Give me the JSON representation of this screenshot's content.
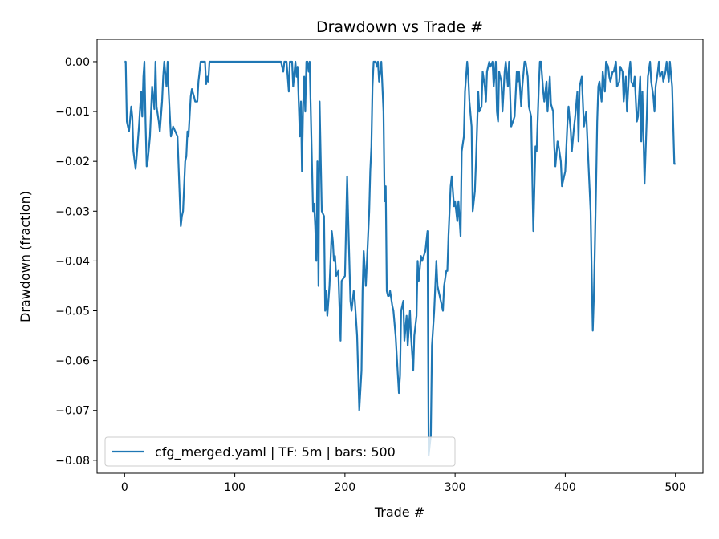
{
  "chart_data": {
    "type": "line",
    "title": "Drawdown vs Trade #",
    "xlabel": "Trade #",
    "ylabel": "Drawdown (fraction)",
    "xlim": [
      -25,
      525
    ],
    "ylim": [
      -0.0826,
      0.0045
    ],
    "xticks": [
      0,
      100,
      200,
      300,
      400,
      500
    ],
    "xtick_labels": [
      "0",
      "100",
      "200",
      "300",
      "400",
      "500"
    ],
    "yticks": [
      0,
      -0.01,
      -0.02,
      -0.03,
      -0.04,
      -0.05,
      -0.06,
      -0.07,
      -0.08
    ],
    "ytick_labels": [
      "0.00",
      "−0.01",
      "−0.02",
      "−0.03",
      "−0.04",
      "−0.05",
      "−0.06",
      "−0.07",
      "−0.08"
    ],
    "grid": false,
    "legend_position": "lower-left",
    "series": [
      {
        "name": "cfg_merged.yaml | TF: 5m | bars: 500",
        "color": "#1f77b4",
        "points": [
          [
            0,
            0
          ],
          [
            1,
            0
          ],
          [
            2,
            -0.012
          ],
          [
            4,
            -0.014
          ],
          [
            6,
            -0.009
          ],
          [
            7,
            -0.011
          ],
          [
            8,
            -0.018
          ],
          [
            10,
            -0.0215
          ],
          [
            11,
            -0.019
          ],
          [
            13,
            -0.013
          ],
          [
            15,
            -0.006
          ],
          [
            16,
            -0.011
          ],
          [
            17,
            -0.003
          ],
          [
            18,
            0
          ],
          [
            19,
            -0.012
          ],
          [
            20,
            -0.021
          ],
          [
            21,
            -0.02
          ],
          [
            23,
            -0.015
          ],
          [
            25,
            -0.005
          ],
          [
            27,
            -0.0095
          ],
          [
            28,
            0
          ],
          [
            29,
            -0.009
          ],
          [
            31,
            -0.012
          ],
          [
            32,
            -0.014
          ],
          [
            34,
            -0.008
          ],
          [
            35,
            -0.003
          ],
          [
            36,
            0
          ],
          [
            38,
            -0.005
          ],
          [
            39,
            0
          ],
          [
            40,
            -0.006
          ],
          [
            42,
            -0.015
          ],
          [
            44,
            -0.013
          ],
          [
            46,
            -0.014
          ],
          [
            48,
            -0.015
          ],
          [
            51,
            -0.033
          ],
          [
            52,
            -0.031
          ],
          [
            53,
            -0.03
          ],
          [
            55,
            -0.02
          ],
          [
            56,
            -0.019
          ],
          [
            57,
            -0.014
          ],
          [
            58,
            -0.015
          ],
          [
            60,
            -0.007
          ],
          [
            61,
            -0.0055
          ],
          [
            63,
            -0.007
          ],
          [
            64,
            -0.008
          ],
          [
            66,
            -0.008
          ],
          [
            67,
            -0.004
          ],
          [
            68,
            -0.002
          ],
          [
            69,
            0
          ],
          [
            73,
            0
          ],
          [
            74,
            -0.0045
          ],
          [
            75,
            -0.003
          ],
          [
            76,
            -0.004
          ],
          [
            77,
            0
          ],
          [
            142,
            0
          ],
          [
            144,
            -0.002
          ],
          [
            145,
            0
          ],
          [
            147,
            0
          ],
          [
            149,
            -0.006
          ],
          [
            150,
            0
          ],
          [
            152,
            0
          ],
          [
            153,
            -0.005
          ],
          [
            155,
            0
          ],
          [
            156,
            -0.003
          ],
          [
            157,
            -0.001
          ],
          [
            159,
            -0.015
          ],
          [
            160,
            -0.008
          ],
          [
            161,
            -0.022
          ],
          [
            162,
            -0.009
          ],
          [
            163,
            -0.003
          ],
          [
            164,
            -0.01
          ],
          [
            165,
            0
          ],
          [
            166,
            0
          ],
          [
            167,
            -0.002
          ],
          [
            168,
            0
          ],
          [
            171,
            -0.03
          ],
          [
            172,
            -0.0285
          ],
          [
            173,
            -0.033
          ],
          [
            174,
            -0.04
          ],
          [
            175,
            -0.02
          ],
          [
            176,
            -0.045
          ],
          [
            177,
            -0.008
          ],
          [
            179,
            -0.03
          ],
          [
            181,
            -0.031
          ],
          [
            182,
            -0.05
          ],
          [
            183,
            -0.046
          ],
          [
            184,
            -0.051
          ],
          [
            186,
            -0.045
          ],
          [
            188,
            -0.034
          ],
          [
            189,
            -0.036
          ],
          [
            190,
            -0.04
          ],
          [
            191,
            -0.039
          ],
          [
            192,
            -0.043
          ],
          [
            194,
            -0.042
          ],
          [
            196,
            -0.056
          ],
          [
            197,
            -0.044
          ],
          [
            200,
            -0.043
          ],
          [
            202,
            -0.023
          ],
          [
            203,
            -0.032
          ],
          [
            205,
            -0.048
          ],
          [
            206,
            -0.05
          ],
          [
            208,
            -0.046
          ],
          [
            209,
            -0.048
          ],
          [
            211,
            -0.055
          ],
          [
            213,
            -0.07
          ],
          [
            215,
            -0.062
          ],
          [
            216,
            -0.046
          ],
          [
            217,
            -0.038
          ],
          [
            219,
            -0.045
          ],
          [
            220,
            -0.04
          ],
          [
            222,
            -0.03
          ],
          [
            223,
            -0.022
          ],
          [
            224,
            -0.017
          ],
          [
            225,
            -0.005
          ],
          [
            226,
            0
          ],
          [
            228,
            0
          ],
          [
            229,
            -0.001
          ],
          [
            230,
            0
          ],
          [
            231,
            -0.004
          ],
          [
            233,
            0
          ],
          [
            235,
            -0.01
          ],
          [
            236,
            -0.028
          ],
          [
            237,
            -0.025
          ],
          [
            238,
            -0.046
          ],
          [
            239,
            -0.047
          ],
          [
            240,
            -0.047
          ],
          [
            241,
            -0.046
          ],
          [
            243,
            -0.049
          ],
          [
            244,
            -0.05
          ],
          [
            246,
            -0.055
          ],
          [
            249,
            -0.0665
          ],
          [
            250,
            -0.063
          ],
          [
            251,
            -0.05
          ],
          [
            253,
            -0.048
          ],
          [
            254,
            -0.056
          ],
          [
            256,
            -0.051
          ],
          [
            257,
            -0.057
          ],
          [
            259,
            -0.05
          ],
          [
            260,
            -0.055
          ],
          [
            262,
            -0.062
          ],
          [
            263,
            -0.055
          ],
          [
            265,
            -0.051
          ],
          [
            266,
            -0.04
          ],
          [
            267,
            -0.044
          ],
          [
            269,
            -0.039
          ],
          [
            270,
            -0.04
          ],
          [
            273,
            -0.038
          ],
          [
            274,
            -0.036
          ],
          [
            275,
            -0.034
          ],
          [
            276,
            -0.079
          ],
          [
            278,
            -0.075
          ],
          [
            279,
            -0.057
          ],
          [
            281,
            -0.05
          ],
          [
            283,
            -0.04
          ],
          [
            284,
            -0.045
          ],
          [
            286,
            -0.047
          ],
          [
            287,
            -0.048
          ],
          [
            289,
            -0.05
          ],
          [
            290,
            -0.045
          ],
          [
            292,
            -0.042
          ],
          [
            293,
            -0.042
          ],
          [
            294,
            -0.035
          ],
          [
            296,
            -0.025
          ],
          [
            297,
            -0.023
          ],
          [
            299,
            -0.029
          ],
          [
            300,
            -0.028
          ],
          [
            302,
            -0.032
          ],
          [
            303,
            -0.028
          ],
          [
            305,
            -0.035
          ],
          [
            306,
            -0.018
          ],
          [
            308,
            -0.015
          ],
          [
            309,
            -0.006
          ],
          [
            311,
            0
          ],
          [
            312,
            -0.003
          ],
          [
            313,
            -0.008
          ],
          [
            315,
            -0.013
          ],
          [
            316,
            -0.03
          ],
          [
            318,
            -0.026
          ],
          [
            319,
            -0.02
          ],
          [
            321,
            -0.006
          ],
          [
            322,
            -0.01
          ],
          [
            324,
            -0.009
          ],
          [
            325,
            -0.002
          ],
          [
            327,
            -0.005
          ],
          [
            328,
            -0.008
          ],
          [
            329,
            -0.002
          ],
          [
            331,
            0
          ],
          [
            332,
            -0.001
          ],
          [
            334,
            0
          ],
          [
            335,
            -0.005
          ],
          [
            337,
            0
          ],
          [
            338,
            -0.01
          ],
          [
            339,
            -0.012
          ],
          [
            340,
            -0.002
          ],
          [
            342,
            -0.004
          ],
          [
            343,
            -0.01
          ],
          [
            345,
            -0.002
          ],
          [
            346,
            0
          ],
          [
            348,
            -0.005
          ],
          [
            349,
            0
          ],
          [
            351,
            -0.013
          ],
          [
            354,
            -0.011
          ],
          [
            356,
            -0.002
          ],
          [
            357,
            -0.004
          ],
          [
            358,
            -0.002
          ],
          [
            360,
            -0.009
          ],
          [
            361,
            -0.005
          ],
          [
            363,
            0
          ],
          [
            364,
            0
          ],
          [
            366,
            -0.003
          ],
          [
            367,
            -0.009
          ],
          [
            369,
            -0.011
          ],
          [
            371,
            -0.034
          ],
          [
            373,
            -0.017
          ],
          [
            374,
            -0.018
          ],
          [
            376,
            -0.005
          ],
          [
            377,
            0
          ],
          [
            378,
            0
          ],
          [
            380,
            -0.006
          ],
          [
            381,
            -0.008
          ],
          [
            383,
            -0.004
          ],
          [
            384,
            -0.01
          ],
          [
            386,
            -0.003
          ],
          [
            387,
            -0.0085
          ],
          [
            389,
            -0.01
          ],
          [
            390,
            -0.017
          ],
          [
            391,
            -0.021
          ],
          [
            393,
            -0.016
          ],
          [
            394,
            -0.017
          ],
          [
            396,
            -0.02
          ],
          [
            397,
            -0.025
          ],
          [
            399,
            -0.023
          ],
          [
            400,
            -0.022
          ],
          [
            402,
            -0.012
          ],
          [
            403,
            -0.009
          ],
          [
            405,
            -0.014
          ],
          [
            406,
            -0.018
          ],
          [
            408,
            -0.013
          ],
          [
            409,
            -0.011
          ],
          [
            411,
            -0.006
          ],
          [
            412,
            -0.016
          ],
          [
            413,
            -0.005
          ],
          [
            415,
            -0.003
          ],
          [
            417,
            -0.013
          ],
          [
            419,
            -0.01
          ],
          [
            421,
            -0.02
          ],
          [
            423,
            -0.03
          ],
          [
            424,
            -0.043
          ],
          [
            425,
            -0.054
          ],
          [
            426,
            -0.047
          ],
          [
            428,
            -0.025
          ],
          [
            429,
            -0.012
          ],
          [
            430,
            -0.005
          ],
          [
            431,
            -0.004
          ],
          [
            433,
            -0.008
          ],
          [
            434,
            -0.002
          ],
          [
            436,
            -0.006
          ],
          [
            437,
            0
          ],
          [
            439,
            -0.001
          ],
          [
            440,
            -0.003
          ],
          [
            441,
            -0.004
          ],
          [
            443,
            -0.002
          ],
          [
            444,
            -0.002
          ],
          [
            446,
            0
          ],
          [
            447,
            -0.005
          ],
          [
            449,
            -0.004
          ],
          [
            450,
            -0.001
          ],
          [
            452,
            -0.002
          ],
          [
            453,
            -0.008
          ],
          [
            455,
            -0.003
          ],
          [
            456,
            -0.01
          ],
          [
            458,
            -0.002
          ],
          [
            459,
            0
          ],
          [
            460,
            -0.004
          ],
          [
            462,
            -0.005
          ],
          [
            463,
            -0.003
          ],
          [
            465,
            -0.012
          ],
          [
            466,
            -0.011
          ],
          [
            468,
            -0.003
          ],
          [
            469,
            -0.016
          ],
          [
            470,
            -0.006
          ],
          [
            472,
            -0.0245
          ],
          [
            474,
            -0.011
          ],
          [
            475,
            -0.003
          ],
          [
            477,
            0
          ],
          [
            478,
            -0.004
          ],
          [
            480,
            -0.007
          ],
          [
            481,
            -0.01
          ],
          [
            482,
            -0.005
          ],
          [
            484,
            -0.002
          ],
          [
            485,
            0
          ],
          [
            486,
            -0.003
          ],
          [
            488,
            -0.002
          ],
          [
            489,
            -0.004
          ],
          [
            491,
            -0.002
          ],
          [
            492,
            0
          ],
          [
            494,
            -0.004
          ],
          [
            495,
            0
          ],
          [
            497,
            -0.005
          ],
          [
            499,
            -0.0205
          ],
          [
            500,
            -0.0205
          ]
        ]
      }
    ]
  }
}
